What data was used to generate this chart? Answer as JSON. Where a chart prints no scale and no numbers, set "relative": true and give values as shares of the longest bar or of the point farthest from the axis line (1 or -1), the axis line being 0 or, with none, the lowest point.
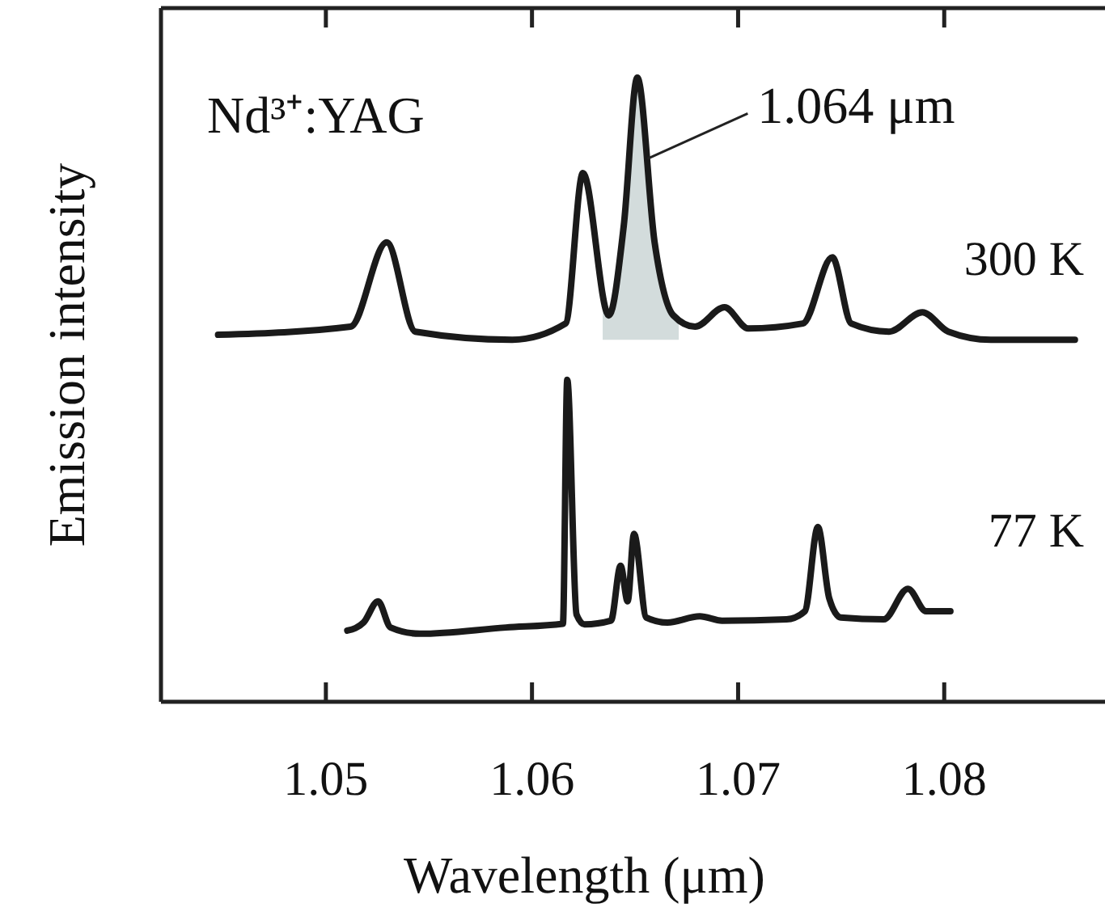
{
  "chart_data": {
    "type": "line",
    "relative": true,
    "xlabel": "Wavelength (μm)",
    "ylabel": "Emission intensity",
    "xlim": [
      1.042,
      1.0878
    ],
    "xticks": [
      1.05,
      1.06,
      1.07,
      1.08
    ],
    "annotations": [
      "Nd³⁺:YAG",
      {
        "text": "1.064 μm",
        "x": 1.0656,
        "y": 0.87
      }
    ],
    "bands": [
      {
        "axis": "x",
        "from": 1.06343,
        "to": 1.06712,
        "color": "#d3dcdc"
      }
    ],
    "series": [
      {
        "name": "300 K",
        "color": "#1a1a1a",
        "x": [
          1.04477,
          1.0512,
          1.05295,
          1.05434,
          1.05904,
          1.06163,
          1.06247,
          1.06373,
          1.06445,
          1.06511,
          1.06595,
          1.06686,
          1.06791,
          1.06934,
          1.07049,
          1.07314,
          1.07457,
          1.07549,
          1.07732,
          1.07894,
          1.0802,
          1.08226,
          1.08634
        ],
        "values": [
          0.588,
          0.601,
          0.736,
          0.593,
          0.58,
          0.606,
          0.847,
          0.619,
          0.762,
          1.0,
          0.736,
          0.619,
          0.601,
          0.632,
          0.598,
          0.606,
          0.712,
          0.606,
          0.593,
          0.624,
          0.593,
          0.58,
          0.58
        ]
      },
      {
        "name": "77 K",
        "color": "#1a1a1a",
        "x": [
          1.05104,
          1.05183,
          1.05253,
          1.05314,
          1.05457,
          1.05873,
          1.0615,
          1.06171,
          1.06216,
          1.06255,
          1.06383,
          1.0643,
          1.06464,
          1.06495,
          1.06555,
          1.06657,
          1.06814,
          1.06922,
          1.07235,
          1.07324,
          1.07387,
          1.07442,
          1.07498,
          1.07706,
          1.07824,
          1.07912,
          1.0803
        ],
        "values": [
          0.114,
          0.127,
          0.161,
          0.119,
          0.109,
          0.119,
          0.125,
          0.516,
          0.14,
          0.124,
          0.13,
          0.218,
          0.161,
          0.269,
          0.135,
          0.127,
          0.137,
          0.13,
          0.132,
          0.145,
          0.28,
          0.166,
          0.135,
          0.132,
          0.181,
          0.145,
          0.145
        ]
      }
    ]
  }
}
